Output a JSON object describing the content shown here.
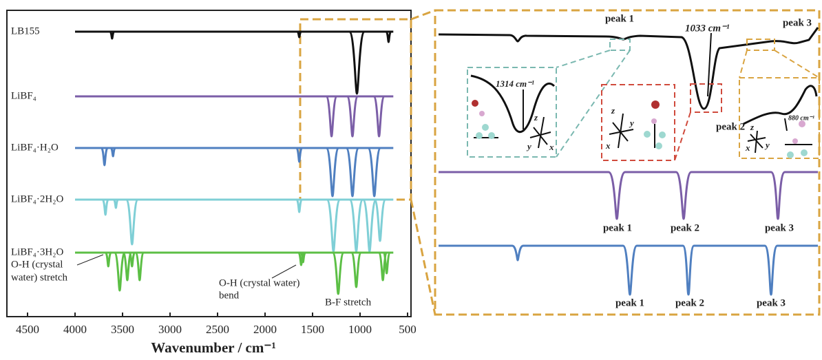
{
  "chart_data": {
    "type": "spectrum",
    "xlabel": "Wavenumber / cm⁻¹",
    "xlim": [
      4500,
      500
    ],
    "xticks": [
      4500,
      4000,
      3500,
      3000,
      2500,
      2000,
      1500,
      1000,
      500
    ],
    "span": [
      4000,
      650
    ],
    "series": [
      {
        "name": "LB155",
        "color": "#111111",
        "x": [
          3610,
          1640,
          1033,
          700
        ],
        "values": [
          10,
          8,
          90,
          15
        ]
      },
      {
        "name": "LiBF₄",
        "color": "#7b5ea7",
        "x": [
          1300,
          1080,
          800
        ],
        "values": [
          58,
          58,
          58
        ]
      },
      {
        "name": "LiBF₄·H₂O",
        "color": "#4f7fc0",
        "x": [
          3690,
          3600,
          1640,
          1290,
          1080,
          850
        ],
        "values": [
          25,
          12,
          20,
          70,
          70,
          70
        ]
      },
      {
        "name": "LiBF₄·2H₂O",
        "color": "#7fcfd6",
        "x": [
          3680,
          3570,
          3400,
          1640,
          1280,
          1040,
          900,
          790
        ],
        "values": [
          22,
          12,
          65,
          18,
          75,
          75,
          75,
          60
        ]
      },
      {
        "name": "LiBF₄·3H₂O",
        "color": "#5cbf45",
        "x": [
          3650,
          3530,
          3450,
          3400,
          3320,
          1620,
          1600,
          1230,
          1040,
          760,
          720
        ],
        "values": [
          20,
          55,
          40,
          20,
          40,
          18,
          14,
          60,
          50,
          40,
          30
        ]
      }
    ],
    "annotations": [
      "O-H (crystal",
      "water) stretch",
      "O-H (crystal water)",
      "bend",
      "B-F stretch"
    ]
  },
  "zoom_panel": {
    "callouts": [
      "1314 cm⁻¹",
      "1033 cm⁻¹",
      "880 cm⁻¹"
    ],
    "peak_labels": [
      "peak 1",
      "peak 2",
      "peak 3"
    ],
    "axes": [
      "x",
      "y",
      "z"
    ]
  }
}
